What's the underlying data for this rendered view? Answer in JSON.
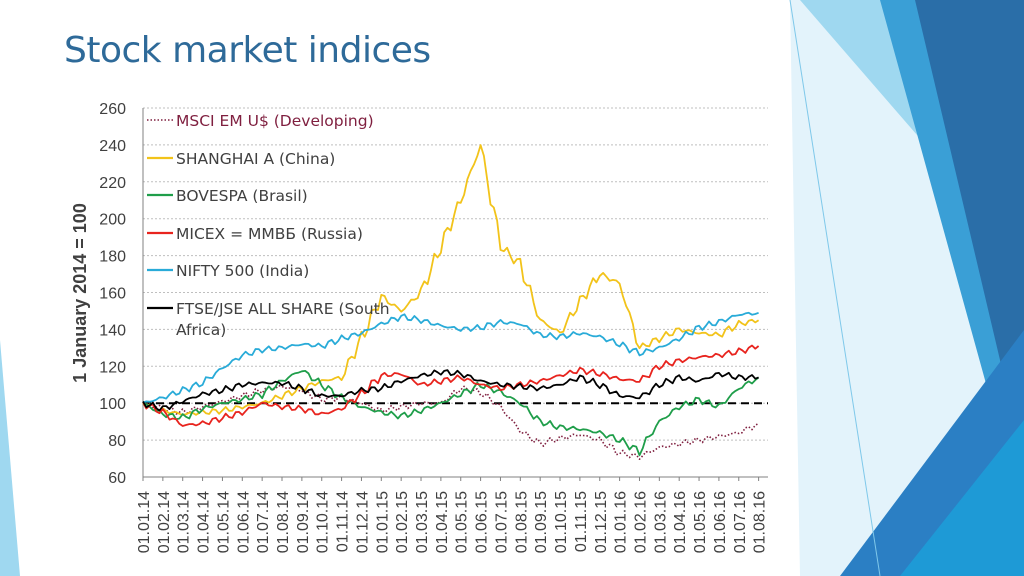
{
  "slide": {
    "title": "Stock market indices"
  },
  "colors": {
    "title": "#2e6a99",
    "grid": "#bfbfbf"
  },
  "chart_data": {
    "type": "line",
    "ylabel": "1 January 2014 = 100",
    "xlabel": "",
    "ylim": [
      60,
      260
    ],
    "yticks": [
      60,
      80,
      100,
      120,
      140,
      160,
      180,
      200,
      220,
      240,
      260
    ],
    "grid": "horizontal dotted",
    "legend": "top-left",
    "reference_line": {
      "y": 100,
      "style": "dashed",
      "color": "#000000"
    },
    "x": [
      "01.01.14",
      "01.02.14",
      "01.03.14",
      "01.04.14",
      "01.05.14",
      "01.06.14",
      "01.07.14",
      "01.08.14",
      "01.09.14",
      "01.10.14",
      "01.11.14",
      "01.12.14",
      "01.01.15",
      "01.02.15",
      "01.03.15",
      "01.04.15",
      "01.05.15",
      "01.06.15",
      "01.07.15",
      "01.08.15",
      "01.09.15",
      "01.10.15",
      "01.11.15",
      "01.12.15",
      "01.01.16",
      "01.02.16",
      "01.03.16",
      "01.04.16",
      "01.05.16",
      "01.06.16",
      "01.07.16",
      "01.08.16"
    ],
    "series": [
      {
        "name": "MSCI EM U$ (Developing)",
        "color": "#7f1f3f",
        "style": "dotted",
        "values": [
          100,
          97,
          95,
          98,
          101,
          104,
          107,
          109,
          107,
          102,
          103,
          100,
          96,
          98,
          100,
          100,
          108,
          106,
          98,
          85,
          78,
          81,
          83,
          80,
          73,
          71,
          76,
          78,
          80,
          82,
          84,
          89
        ]
      },
      {
        "name": "SHANGHAI A (China)",
        "color": "#f2c31a",
        "style": "solid",
        "values": [
          100,
          96,
          94,
          95,
          96,
          98,
          100,
          104,
          108,
          112,
          114,
          135,
          158,
          150,
          160,
          185,
          210,
          240,
          185,
          175,
          145,
          138,
          155,
          170,
          165,
          130,
          135,
          140,
          138,
          137,
          143,
          145
        ]
      },
      {
        "name": "BOVESPA (Brasil)",
        "color": "#1f9e4a",
        "style": "solid",
        "values": [
          100,
          94,
          92,
          97,
          100,
          102,
          105,
          112,
          118,
          110,
          103,
          98,
          95,
          93,
          96,
          100,
          105,
          110,
          106,
          100,
          90,
          87,
          86,
          84,
          80,
          74,
          90,
          98,
          102,
          98,
          108,
          114
        ]
      },
      {
        "name": "MICEX = ММВБ (Russia)",
        "color": "#e8241e",
        "style": "solid",
        "values": [
          100,
          95,
          88,
          89,
          92,
          95,
          100,
          98,
          97,
          94,
          97,
          105,
          115,
          116,
          110,
          112,
          114,
          110,
          108,
          110,
          112,
          115,
          118,
          116,
          113,
          112,
          120,
          123,
          125,
          126,
          128,
          131
        ]
      },
      {
        "name": "NIFTY 500 (India)",
        "color": "#29abd8",
        "style": "solid",
        "values": [
          100,
          103,
          107,
          111,
          119,
          126,
          129,
          130,
          132,
          131,
          135,
          138,
          143,
          147,
          145,
          142,
          140,
          141,
          144,
          143,
          137,
          136,
          138,
          136,
          132,
          127,
          130,
          135,
          141,
          144,
          148,
          149
        ]
      },
      {
        "name": "FTSE/JSE ALL SHARE (South Africa)",
        "color": "#000000",
        "style": "solid",
        "values": [
          100,
          97,
          101,
          105,
          107,
          110,
          111,
          111,
          108,
          104,
          104,
          107,
          108,
          112,
          115,
          117,
          116,
          112,
          110,
          109,
          108,
          110,
          114,
          110,
          104,
          103,
          110,
          114,
          112,
          116,
          114,
          114
        ]
      }
    ]
  }
}
